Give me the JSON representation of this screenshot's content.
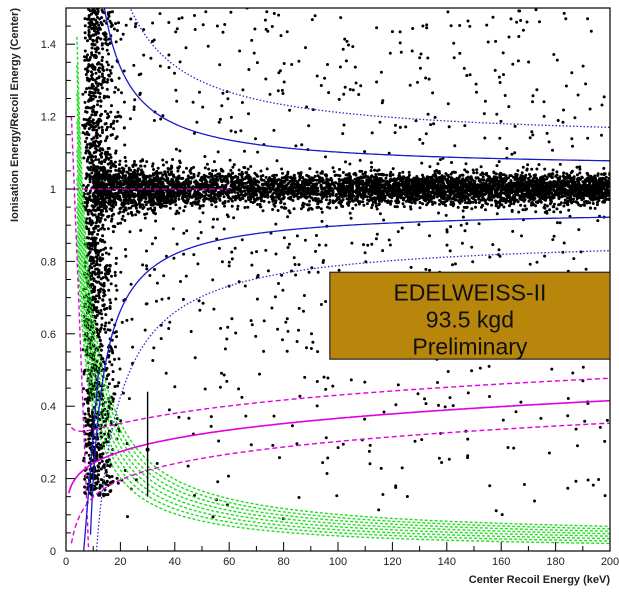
{
  "chart_data": {
    "type": "scatter",
    "title": "",
    "xlabel": "Center Recoil Energy (keV)",
    "ylabel": "Ionisation Energy/Recoil Energy (Center)",
    "xlim": [
      0,
      200
    ],
    "ylim": [
      0,
      1.5
    ],
    "xticks": [
      "0",
      "20",
      "40",
      "60",
      "80",
      "100",
      "120",
      "140",
      "160",
      "180",
      "200"
    ],
    "yticks": [
      "0",
      "0.2",
      "0.4",
      "0.6",
      "0.8",
      "1",
      "1.2",
      "1.4"
    ],
    "annotation": {
      "lines": [
        "EDELWEISS-II",
        "93.5 kgd",
        "Preliminary"
      ],
      "x_range": [
        97,
        200
      ],
      "y_range": [
        0.53,
        0.77
      ],
      "fill": "#b8860b"
    },
    "error_bar": {
      "x": 30,
      "y_low": 0.15,
      "y_high": 0.44,
      "y_center": 0.28
    },
    "series": [
      {
        "kind": "electron_recoil_band",
        "color": "#000000",
        "center_q": 1.0,
        "description_values": {
          "peak_density_x_range": [
            110,
            200
          ]
        }
      },
      {
        "kind": "ER_bounds_solid",
        "color": "#1a1acc",
        "q_center": 1.0,
        "half_width_at_200": 0.07
      },
      {
        "kind": "ER_bounds_dotted",
        "color": "#2a2acc",
        "half_width_at_200": 0.14
      },
      {
        "kind": "nuclear_recoil_mean",
        "color": "#e000e0",
        "form": "0.16*x^0.18"
      },
      {
        "kind": "nuclear_recoil_bounds_dashed",
        "color": "#e000e0",
        "offsets": [
          -0.06,
          0.06
        ]
      },
      {
        "kind": "threshold_curves",
        "color": "#22dd22",
        "count": 8
      }
    ],
    "magenta_reference_lines": [
      {
        "y": 1.0,
        "x_range": [
          0,
          60
        ]
      },
      {
        "y": 1.2,
        "x_range": [
          0,
          3
        ]
      }
    ],
    "grid": false
  }
}
